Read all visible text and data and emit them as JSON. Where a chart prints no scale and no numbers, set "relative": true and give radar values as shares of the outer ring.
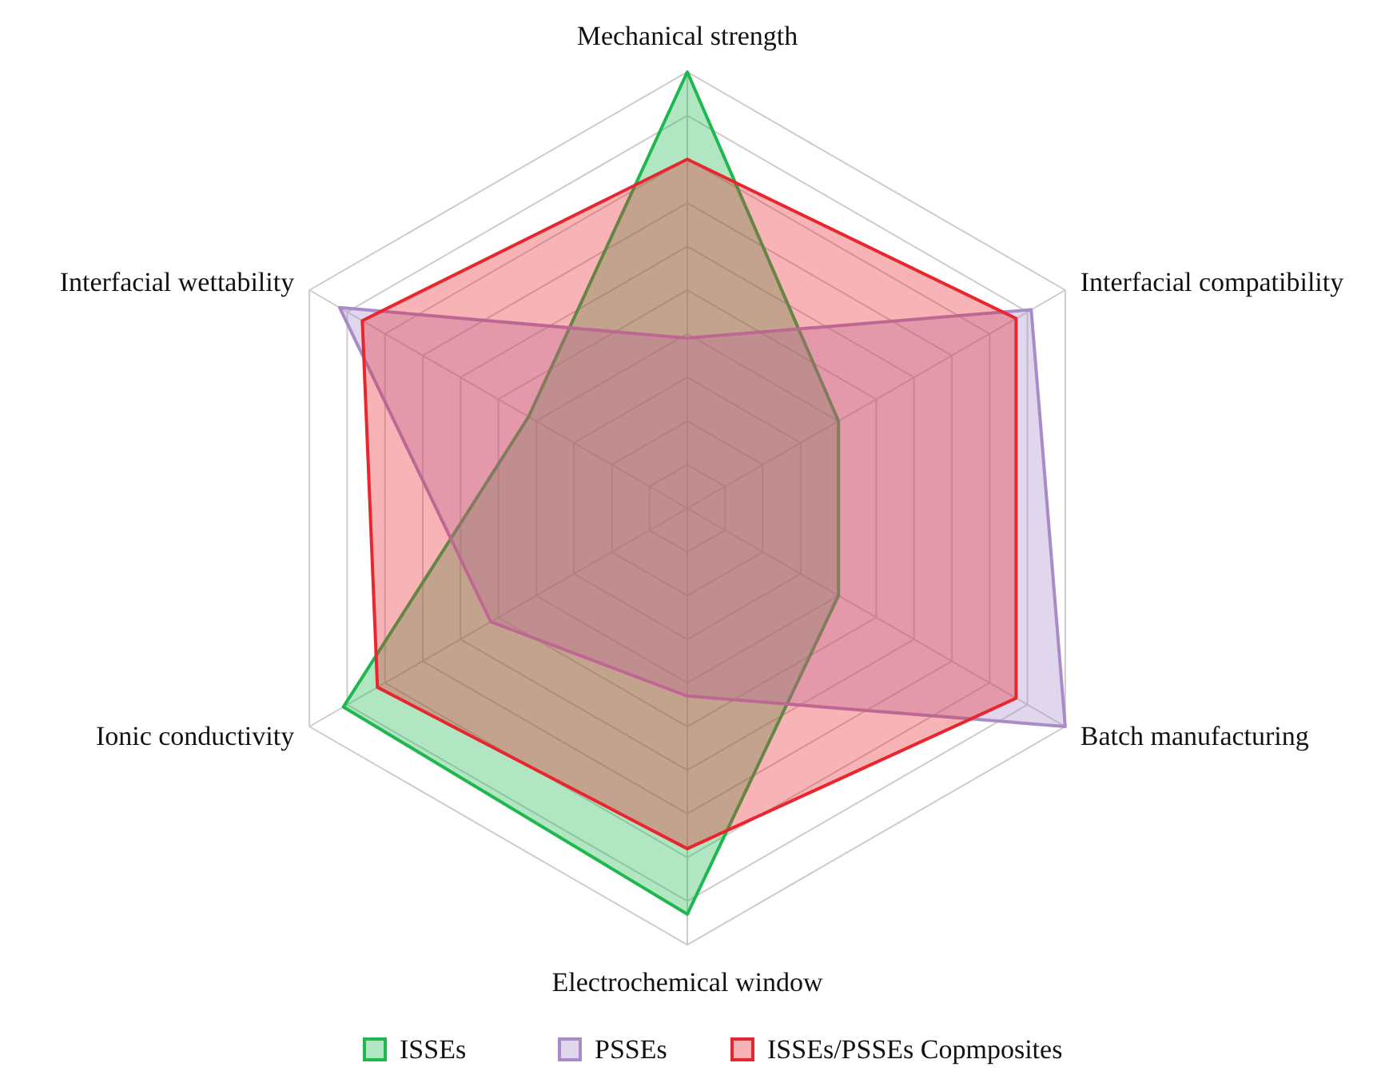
{
  "chart_data": {
    "type": "radar",
    "relative": true,
    "grid": true,
    "legend": "bottom",
    "categories": [
      "Mechanical strength",
      "Interfacial compatibility",
      "Batch manufacturing",
      "Electrochemical window",
      "Ionic conductivity",
      "Interfacial wettability"
    ],
    "series": [
      {
        "name": "ISSEs",
        "color": "#1eb84f",
        "values": [
          1.0,
          0.4,
          0.4,
          0.93,
          0.91,
          0.42
        ]
      },
      {
        "name": "PSSEs",
        "color": "#a98bc9",
        "values": [
          0.39,
          0.91,
          1.0,
          0.43,
          0.52,
          0.92
        ]
      },
      {
        "name": "ISSEs/PSSEs Copmposites",
        "color": "#e8262e",
        "values": [
          0.8,
          0.87,
          0.87,
          0.78,
          0.82,
          0.86
        ]
      }
    ]
  }
}
